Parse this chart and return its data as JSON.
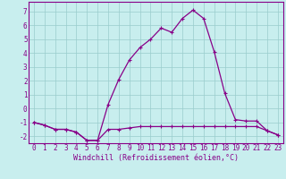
{
  "xlabel": "Windchill (Refroidissement éolien,°C)",
  "xlim": [
    -0.5,
    23.5
  ],
  "ylim": [
    -2.5,
    7.7
  ],
  "yticks": [
    -2,
    -1,
    0,
    1,
    2,
    3,
    4,
    5,
    6,
    7
  ],
  "xticks": [
    0,
    1,
    2,
    3,
    4,
    5,
    6,
    7,
    8,
    9,
    10,
    11,
    12,
    13,
    14,
    15,
    16,
    17,
    18,
    19,
    20,
    21,
    22,
    23
  ],
  "bg_color": "#c8eeee",
  "line_color": "#880088",
  "grid_color": "#99cccc",
  "temperature": [
    -1.0,
    -1.2,
    -1.5,
    -1.5,
    -1.7,
    -2.3,
    -2.3,
    0.3,
    2.1,
    3.5,
    4.4,
    5.0,
    5.8,
    5.5,
    6.5,
    7.1,
    6.5,
    4.1,
    1.1,
    -0.8,
    -0.9,
    -0.9,
    -1.6,
    -1.9
  ],
  "windchill": [
    -1.0,
    -1.2,
    -1.5,
    -1.5,
    -1.7,
    -2.3,
    -2.3,
    -1.5,
    -1.5,
    -1.4,
    -1.3,
    -1.3,
    -1.3,
    -1.3,
    -1.3,
    -1.3,
    -1.3,
    -1.3,
    -1.3,
    -1.3,
    -1.3,
    -1.3,
    -1.6,
    -1.9
  ],
  "marker_size": 3.5,
  "line_width": 0.9,
  "tick_fontsize": 5.5,
  "xlabel_fontsize": 6.0
}
